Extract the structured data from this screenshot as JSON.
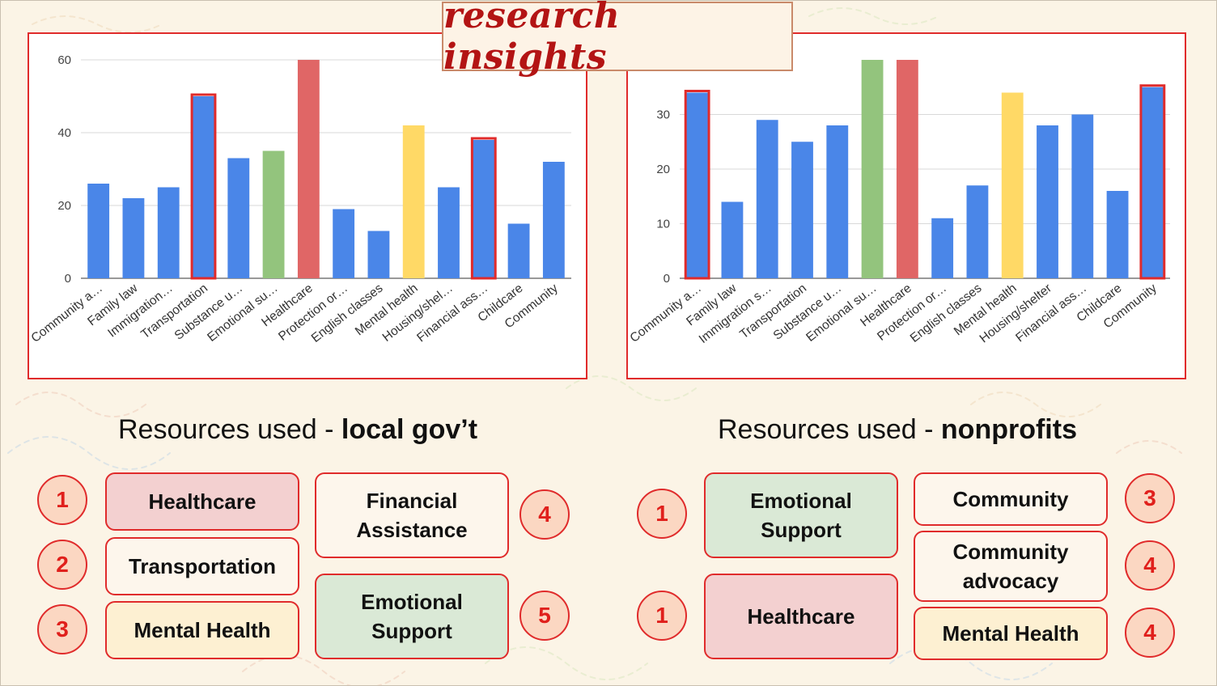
{
  "title": "research insights",
  "colors": {
    "bar_default": "#4a86e8",
    "bar_green": "#93c47d",
    "bar_red": "#e06666",
    "bar_yellow": "#ffd966",
    "highlight_outline": "#e02b2b"
  },
  "chart_data": [
    {
      "type": "bar",
      "categories": [
        "Community a…",
        "Family law",
        "Immigration…",
        "Transportation",
        "Substance u…",
        "Emotional su…",
        "Healthcare",
        "Protection or…",
        "English classes",
        "Mental health",
        "Housing/shel…",
        "Financial ass…",
        "Childcare",
        "Community"
      ],
      "values": [
        26,
        22,
        25,
        50,
        33,
        35,
        60,
        19,
        13,
        42,
        25,
        38,
        15,
        32
      ],
      "bar_colors": [
        "blue",
        "blue",
        "blue",
        "blue",
        "blue",
        "green",
        "red",
        "blue",
        "blue",
        "yellow",
        "blue",
        "blue",
        "blue",
        "blue"
      ],
      "highlighted": [
        "Transportation",
        "Financial ass…"
      ],
      "yticks": [
        0,
        20,
        40,
        60
      ],
      "ylim": [
        0,
        60
      ],
      "grid": true
    },
    {
      "type": "bar",
      "categories": [
        "Community a…",
        "Family law",
        "Immigration s…",
        "Transportation",
        "Substance u…",
        "Emotional su…",
        "Healthcare",
        "Protection or…",
        "English classes",
        "Mental health",
        "Housing/shelter",
        "Financial ass…",
        "Childcare",
        "Community"
      ],
      "values": [
        34,
        14,
        29,
        25,
        28,
        40,
        40,
        11,
        17,
        34,
        28,
        30,
        16,
        35
      ],
      "bar_colors": [
        "blue",
        "blue",
        "blue",
        "blue",
        "blue",
        "green",
        "red",
        "blue",
        "blue",
        "yellow",
        "blue",
        "blue",
        "blue",
        "blue"
      ],
      "highlighted": [
        "Community a…",
        "Community"
      ],
      "yticks": [
        0,
        10,
        20,
        30
      ],
      "ylim": [
        0,
        40
      ],
      "grid": true
    }
  ],
  "local_gov": {
    "heading_prefix": "Resources used - ",
    "heading_bold": "local gov’t",
    "items": [
      {
        "rank": "1",
        "label": "Healthcare"
      },
      {
        "rank": "2",
        "label": "Transportation"
      },
      {
        "rank": "3",
        "label": "Mental Health"
      },
      {
        "rank": "4",
        "label": "Financial Assistance"
      },
      {
        "rank": "5",
        "label": "Emotional Support"
      }
    ]
  },
  "nonprofits": {
    "heading_prefix": "Resources used - ",
    "heading_bold": "nonprofits",
    "items": [
      {
        "rank": "1",
        "label": "Emotional Support"
      },
      {
        "rank": "1",
        "label": "Healthcare"
      },
      {
        "rank": "3",
        "label": "Community"
      },
      {
        "rank": "4",
        "label": "Community advocacy"
      },
      {
        "rank": "4",
        "label": "Mental Health"
      }
    ]
  }
}
